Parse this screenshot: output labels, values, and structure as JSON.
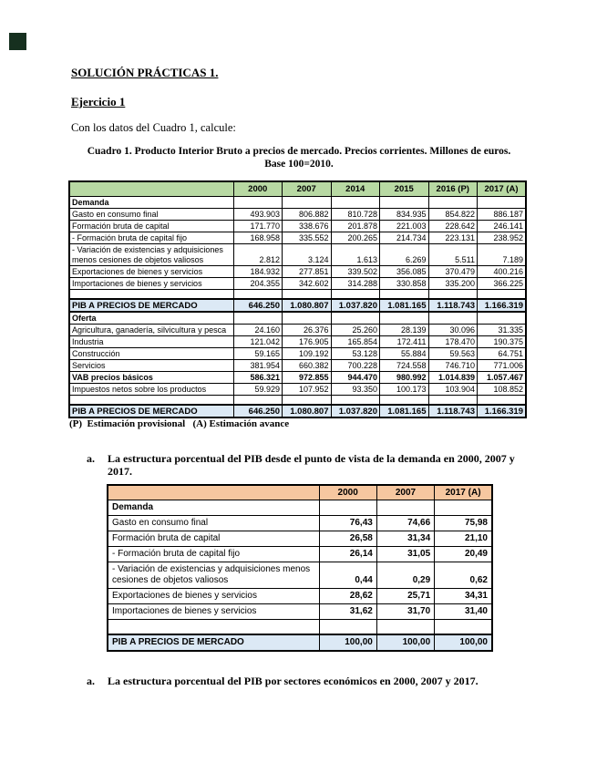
{
  "document": {
    "title": "SOLUCIÓN PRÁCTICAS 1.",
    "exercise_heading": "Ejercicio 1",
    "intro": "Con los datos del Cuadro 1, calcule:",
    "cuadro1_caption": "Cuadro 1. Producto Interior Bruto a precios de mercado. Precios corrientes. Millones de euros. Base 100=2010.",
    "cuadro1_footnote": "(P)  Estimación provisional   (A) Estimación avance",
    "items": [
      {
        "marker": "a.",
        "text": "La estructura porcentual del PIB desde el punto de vista de la demanda en 2000, 2007 y 2017."
      },
      {
        "marker": "a.",
        "text": "La estructura porcentual del PIB por sectores económicos en 2000, 2007 y 2017."
      }
    ]
  },
  "colors": {
    "cuadro1_header_fill": "#b8d9a3",
    "tabla_a_header_fill": "#f6c7a0",
    "total_row_fill": "#dce9f5",
    "corner_square": "#16301f",
    "border": "#000000"
  },
  "tables": {
    "cuadro1": {
      "header_fill": "#b8d9a3",
      "columns": [
        "2000",
        "2007",
        "2014",
        "2015",
        "2016 (P)",
        "2017 (A)"
      ],
      "rows": [
        {
          "label": "Demanda",
          "style": "section",
          "values": [
            "",
            "",
            "",
            "",
            "",
            ""
          ]
        },
        {
          "label": "Gasto en consumo final",
          "style": "",
          "values": [
            "493.903",
            "806.882",
            "810.728",
            "834.935",
            "854.822",
            "886.187"
          ]
        },
        {
          "label": "Formación bruta de capital",
          "style": "",
          "values": [
            "171.770",
            "338.676",
            "201.878",
            "221.003",
            "228.642",
            "246.141"
          ]
        },
        {
          "label": "- Formación bruta de capital fijo",
          "style": "indent",
          "values": [
            "168.958",
            "335.552",
            "200.265",
            "214.734",
            "223.131",
            "238.952"
          ]
        },
        {
          "label": "- Variación de existencias y adquisiciones menos cesiones de objetos valiosos",
          "style": "indent",
          "values": [
            "2.812",
            "3.124",
            "1.613",
            "6.269",
            "5.511",
            "7.189"
          ]
        },
        {
          "label": "Exportaciones de bienes y servicios",
          "style": "",
          "values": [
            "184.932",
            "277.851",
            "339.502",
            "356.085",
            "370.479",
            "400.216"
          ]
        },
        {
          "label": "Importaciones de bienes y servicios",
          "style": "",
          "values": [
            "204.355",
            "342.602",
            "314.288",
            "330.858",
            "335.200",
            "366.225"
          ]
        },
        {
          "label": "",
          "style": "spacer",
          "values": [
            "",
            "",
            "",
            "",
            "",
            ""
          ]
        },
        {
          "label": "PIB A PRECIOS DE MERCADO",
          "style": "total",
          "values": [
            "646.250",
            "1.080.807",
            "1.037.820",
            "1.081.165",
            "1.118.743",
            "1.166.319"
          ]
        },
        {
          "label": "Oferta",
          "style": "section",
          "values": [
            "",
            "",
            "",
            "",
            "",
            ""
          ]
        },
        {
          "label": "Agricultura, ganadería, silvicultura y pesca",
          "style": "",
          "values": [
            "24.160",
            "26.376",
            "25.260",
            "28.139",
            "30.096",
            "31.335"
          ]
        },
        {
          "label": "Industria",
          "style": "",
          "values": [
            "121.042",
            "176.905",
            "165.854",
            "172.411",
            "178.470",
            "190.375"
          ]
        },
        {
          "label": "Construcción",
          "style": "",
          "values": [
            "59.165",
            "109.192",
            "53.128",
            "55.884",
            "59.563",
            "64.751"
          ]
        },
        {
          "label": "Servicios",
          "style": "",
          "values": [
            "381.954",
            "660.382",
            "700.228",
            "724.558",
            "746.710",
            "771.006"
          ]
        },
        {
          "label": "VAB precios básicos",
          "style": "bold",
          "values": [
            "586.321",
            "972.855",
            "944.470",
            "980.992",
            "1.014.839",
            "1.057.467"
          ]
        },
        {
          "label": "Impuestos netos sobre los productos",
          "style": "",
          "values": [
            "59.929",
            "107.952",
            "93.350",
            "100.173",
            "103.904",
            "108.852"
          ]
        },
        {
          "label": "",
          "style": "spacer",
          "values": [
            "",
            "",
            "",
            "",
            "",
            ""
          ]
        },
        {
          "label": "PIB A PRECIOS DE MERCADO",
          "style": "total",
          "values": [
            "646.250",
            "1.080.807",
            "1.037.820",
            "1.081.165",
            "1.118.743",
            "1.166.319"
          ]
        }
      ]
    },
    "tabla_a": {
      "header_fill": "#f6c7a0",
      "columns": [
        "2000",
        "2007",
        "2017 (A)"
      ],
      "rows": [
        {
          "label": "Demanda",
          "style": "section",
          "values": [
            "",
            "",
            ""
          ]
        },
        {
          "label": "Gasto en consumo final",
          "style": "",
          "values": [
            "76,43",
            "74,66",
            "75,98"
          ]
        },
        {
          "label": "Formación bruta de capital",
          "style": "",
          "values": [
            "26,58",
            "31,34",
            "21,10"
          ]
        },
        {
          "label": "- Formación bruta de capital fijo",
          "style": "indent",
          "values": [
            "26,14",
            "31,05",
            "20,49"
          ]
        },
        {
          "label": "- Variación de existencias y adquisiciones menos cesiones de objetos valiosos",
          "style": "indent",
          "values": [
            "0,44",
            "0,29",
            "0,62"
          ]
        },
        {
          "label": "Exportaciones de bienes y servicios",
          "style": "",
          "values": [
            "28,62",
            "25,71",
            "34,31"
          ]
        },
        {
          "label": "Importaciones de bienes y servicios",
          "style": "",
          "values": [
            "31,62",
            "31,70",
            "31,40"
          ]
        },
        {
          "label": "",
          "style": "spacer",
          "values": [
            "",
            "",
            ""
          ]
        },
        {
          "label": "PIB A PRECIOS DE MERCADO",
          "style": "total",
          "values": [
            "100,00",
            "100,00",
            "100,00"
          ]
        }
      ]
    }
  }
}
